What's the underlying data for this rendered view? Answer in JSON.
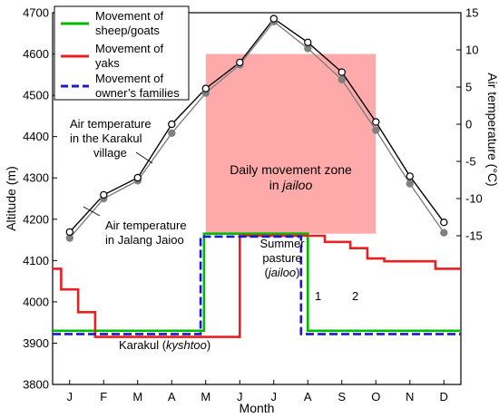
{
  "chart_data": {
    "type": "line",
    "xlabel": "Month",
    "ylabel_left": "Altitude (m)",
    "ylabel_right": "Air temperature (°C)",
    "categories": [
      "J",
      "F",
      "M",
      "A",
      "M",
      "J",
      "J",
      "A",
      "S",
      "O",
      "N",
      "D"
    ],
    "ylim_left": [
      3800,
      4700
    ],
    "yticks_left": [
      3800,
      3900,
      4000,
      4100,
      4200,
      4300,
      4400,
      4500,
      4600,
      4700
    ],
    "ylim_right": [
      -35,
      15
    ],
    "yticks_right": [
      15,
      10,
      5,
      0,
      -5,
      -10,
      -15
    ],
    "series": [
      {
        "name": "Movement of sheep/goats",
        "color": "#00bb00",
        "style": "solid",
        "axis": "left",
        "points": [
          [
            0.5,
            3930
          ],
          [
            4.95,
            3930
          ],
          [
            4.95,
            4165
          ],
          [
            8.0,
            4165
          ],
          [
            8.0,
            3930
          ],
          [
            12.5,
            3930
          ]
        ]
      },
      {
        "name": "Movement of yaks",
        "color": "#e82020",
        "style": "solid",
        "axis": "left",
        "points": [
          [
            0.5,
            4080
          ],
          [
            0.75,
            4080
          ],
          [
            0.75,
            4030
          ],
          [
            1.25,
            4030
          ],
          [
            1.25,
            3975
          ],
          [
            1.75,
            3975
          ],
          [
            1.75,
            3915
          ],
          [
            6.0,
            3915
          ],
          [
            6.0,
            4160
          ],
          [
            8.5,
            4160
          ],
          [
            8.5,
            4145
          ],
          [
            9.25,
            4145
          ],
          [
            9.25,
            4130
          ],
          [
            9.75,
            4130
          ],
          [
            9.75,
            4105
          ],
          [
            10.25,
            4105
          ],
          [
            10.25,
            4098
          ],
          [
            11.75,
            4098
          ],
          [
            11.75,
            4080
          ],
          [
            12.5,
            4080
          ]
        ]
      },
      {
        "name": "Movement of owner’s families",
        "color": "#1a1acc",
        "style": "dashed",
        "axis": "left",
        "points": [
          [
            0.5,
            3922
          ],
          [
            4.85,
            3922
          ],
          [
            4.85,
            4158
          ],
          [
            7.8,
            4158
          ],
          [
            7.8,
            3922
          ],
          [
            12.5,
            3922
          ]
        ]
      },
      {
        "name": "Air temperature in the Karakul village",
        "color": "#000000",
        "marker": "open",
        "axis": "right",
        "x": [
          1,
          2,
          3,
          4,
          5,
          6,
          7,
          8,
          9,
          10,
          11,
          12
        ],
        "values": [
          -14.5,
          -9.5,
          -7.2,
          0,
          4.8,
          8.3,
          14.2,
          11.0,
          7.0,
          0.3,
          -7.0,
          -13.2
        ]
      },
      {
        "name": "Air temperature in Jalang Jaioo",
        "color": "#808080",
        "marker": "filled",
        "axis": "right",
        "x": [
          1,
          2,
          3,
          4,
          5,
          6,
          7,
          8,
          9,
          10,
          11,
          12
        ],
        "values": [
          -15.3,
          -10.0,
          -7.6,
          -1.2,
          4.2,
          8.0,
          13.8,
          10.2,
          6.0,
          -0.8,
          -8.0,
          -14.6
        ]
      }
    ],
    "shaded_region": {
      "label_line1": "Daily movement zone",
      "label_line2": "in ",
      "label_italic": "jailoo",
      "x_range": [
        5.0,
        10.0
      ],
      "y_range": [
        4165,
        4600
      ],
      "color": "#ffaaaa"
    },
    "legend": {
      "position": "top-left",
      "items": [
        [
          "Movement of",
          "sheep/goats"
        ],
        [
          "Movement of",
          "yaks"
        ],
        [
          "Movement of",
          "owner’s families"
        ]
      ]
    },
    "annotations": {
      "karakul_temp": [
        "Air temperature",
        "in the Karakul",
        "village"
      ],
      "jalang_temp": [
        "Air temperature",
        "in Jalang Jaioo"
      ],
      "summer_line1": "Summer",
      "summer_line2": "pasture",
      "summer_line3": "jailoo",
      "karakul_label": "Karakul (",
      "karakul_italic": "kyshtoo",
      "karakul_close": ")",
      "route_1": "1",
      "route_2": "2"
    }
  }
}
